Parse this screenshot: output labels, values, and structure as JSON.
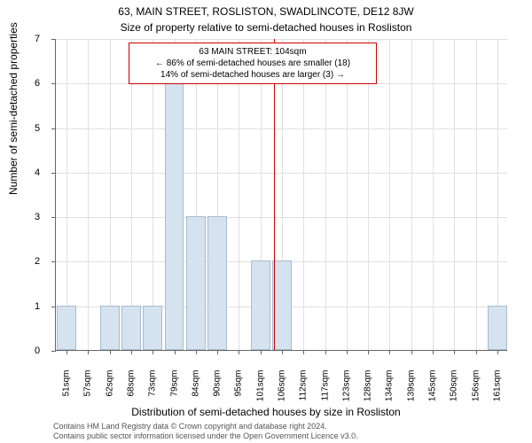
{
  "title_main": "63, MAIN STREET, ROSLISTON, SWADLINCOTE, DE12 8JW",
  "title_sub": "Size of property relative to semi-detached houses in Rosliston",
  "ylabel": "Number of semi-detached properties",
  "xlabel": "Distribution of semi-detached houses by size in Rosliston",
  "footer_line1": "Contains HM Land Registry data © Crown copyright and database right 2024.",
  "footer_line2": "Contains public sector information licensed under the Open Government Licence v3.0.",
  "chart": {
    "type": "bar",
    "x_start": 51,
    "x_step": 5.5,
    "x_count": 21,
    "x_unit": "sqm",
    "x_labels": [
      "51sqm",
      "57sqm",
      "62sqm",
      "68sqm",
      "73sqm",
      "79sqm",
      "84sqm",
      "90sqm",
      "95sqm",
      "101sqm",
      "106sqm",
      "112sqm",
      "117sqm",
      "123sqm",
      "128sqm",
      "134sqm",
      "139sqm",
      "145sqm",
      "150sqm",
      "156sqm",
      "161sqm"
    ],
    "values": [
      1,
      0,
      1,
      1,
      1,
      6,
      3,
      3,
      0,
      2,
      2,
      0,
      0,
      0,
      0,
      0,
      0,
      0,
      0,
      0,
      1
    ],
    "ylim": [
      0,
      7
    ],
    "ytick_step": 1,
    "bar_color": "#d5e3f0",
    "bar_border": "#aabbcc",
    "background_color": "#ffffff",
    "grid_color": "#e0e0e0",
    "axis_color": "#666666",
    "bar_width_ratio": 0.9,
    "reference_value": 104,
    "reference_color": "#cc0000",
    "annotation": {
      "line1": "63 MAIN STREET: 104sqm",
      "line2": "← 86% of semi-detached houses are smaller (18)",
      "line3": "14% of semi-detached houses are larger (3) →",
      "border_color": "#cc0000",
      "fontsize": 10
    },
    "title_fontsize": 12,
    "label_fontsize": 12,
    "tick_fontsize": 11
  }
}
